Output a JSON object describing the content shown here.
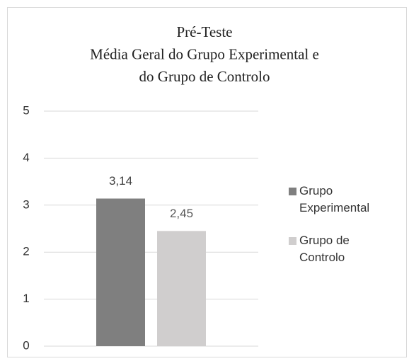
{
  "chart_data": {
    "type": "bar",
    "title": [
      "Pré-Teste",
      "Média Geral do Grupo Experimental e",
      "do Grupo de Controlo"
    ],
    "categories": [
      null
    ],
    "series": [
      {
        "name": "Grupo Experimental",
        "color": "#7f7f7f",
        "values": [
          3.14
        ],
        "value_labels": [
          "3,14"
        ]
      },
      {
        "name": "Grupo de Controlo",
        "color": "#d0cece",
        "values": [
          2.45
        ],
        "value_labels": [
          "2,45"
        ]
      }
    ],
    "ylim": [
      0,
      5
    ],
    "yticks": [
      0,
      1,
      2,
      3,
      4,
      5
    ],
    "grid": true,
    "legend": "right"
  }
}
